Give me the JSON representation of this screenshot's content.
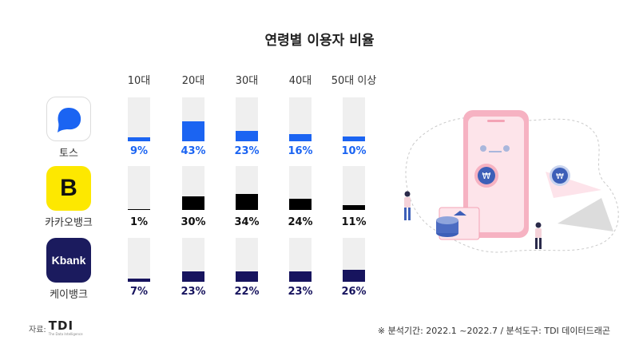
{
  "title": "연령별 이용자 비율",
  "columns": [
    "10대",
    "20대",
    "30대",
    "40대",
    "50대 이상"
  ],
  "apps": [
    {
      "name": "토스",
      "icon": "toss-logo-icon",
      "color": "#1b64f2",
      "text_color": "#1b64f2",
      "values": [
        9,
        43,
        23,
        16,
        10
      ],
      "labels": [
        "9%",
        "43%",
        "23%",
        "16%",
        "10%"
      ]
    },
    {
      "name": "카카오뱅크",
      "icon": "kakaobank-logo-icon",
      "icon_letter": "B",
      "color": "#000000",
      "text_color": "#111111",
      "values": [
        1,
        30,
        34,
        24,
        11
      ],
      "labels": [
        "1%",
        "30%",
        "34%",
        "24%",
        "11%"
      ]
    },
    {
      "name": "케이뱅크",
      "icon": "kbank-logo-icon",
      "icon_letter": "Kbank",
      "color": "#17145e",
      "text_color": "#17145e",
      "values": [
        7,
        23,
        22,
        23,
        26
      ],
      "labels": [
        "7%",
        "23%",
        "22%",
        "23%",
        "26%"
      ]
    }
  ],
  "chart_data": {
    "type": "bar",
    "title": "연령별 이용자 비율",
    "categories": [
      "10대",
      "20대",
      "30대",
      "40대",
      "50대 이상"
    ],
    "ylim": [
      0,
      100
    ],
    "series": [
      {
        "name": "토스",
        "values": [
          9,
          43,
          23,
          16,
          10
        ],
        "color": "#1b64f2"
      },
      {
        "name": "카카오뱅크",
        "values": [
          1,
          30,
          34,
          24,
          11
        ],
        "color": "#000000"
      },
      {
        "name": "케이뱅크",
        "values": [
          7,
          23,
          22,
          23,
          26
        ],
        "color": "#17145e"
      }
    ]
  },
  "source": {
    "label": "자료:",
    "logo": "TDI",
    "logo_sub": "The Data Intelligence"
  },
  "footnote": "※ 분석기간: 2022.1 ~2022.7  / 분석도구: TDI 데이터드래곤",
  "illustration": {
    "icon": "mobile-banking-illustration",
    "colors": {
      "pink": "#f3a3b5",
      "light_pink": "#fbe3e9",
      "blue": "#3d5fb8"
    }
  }
}
